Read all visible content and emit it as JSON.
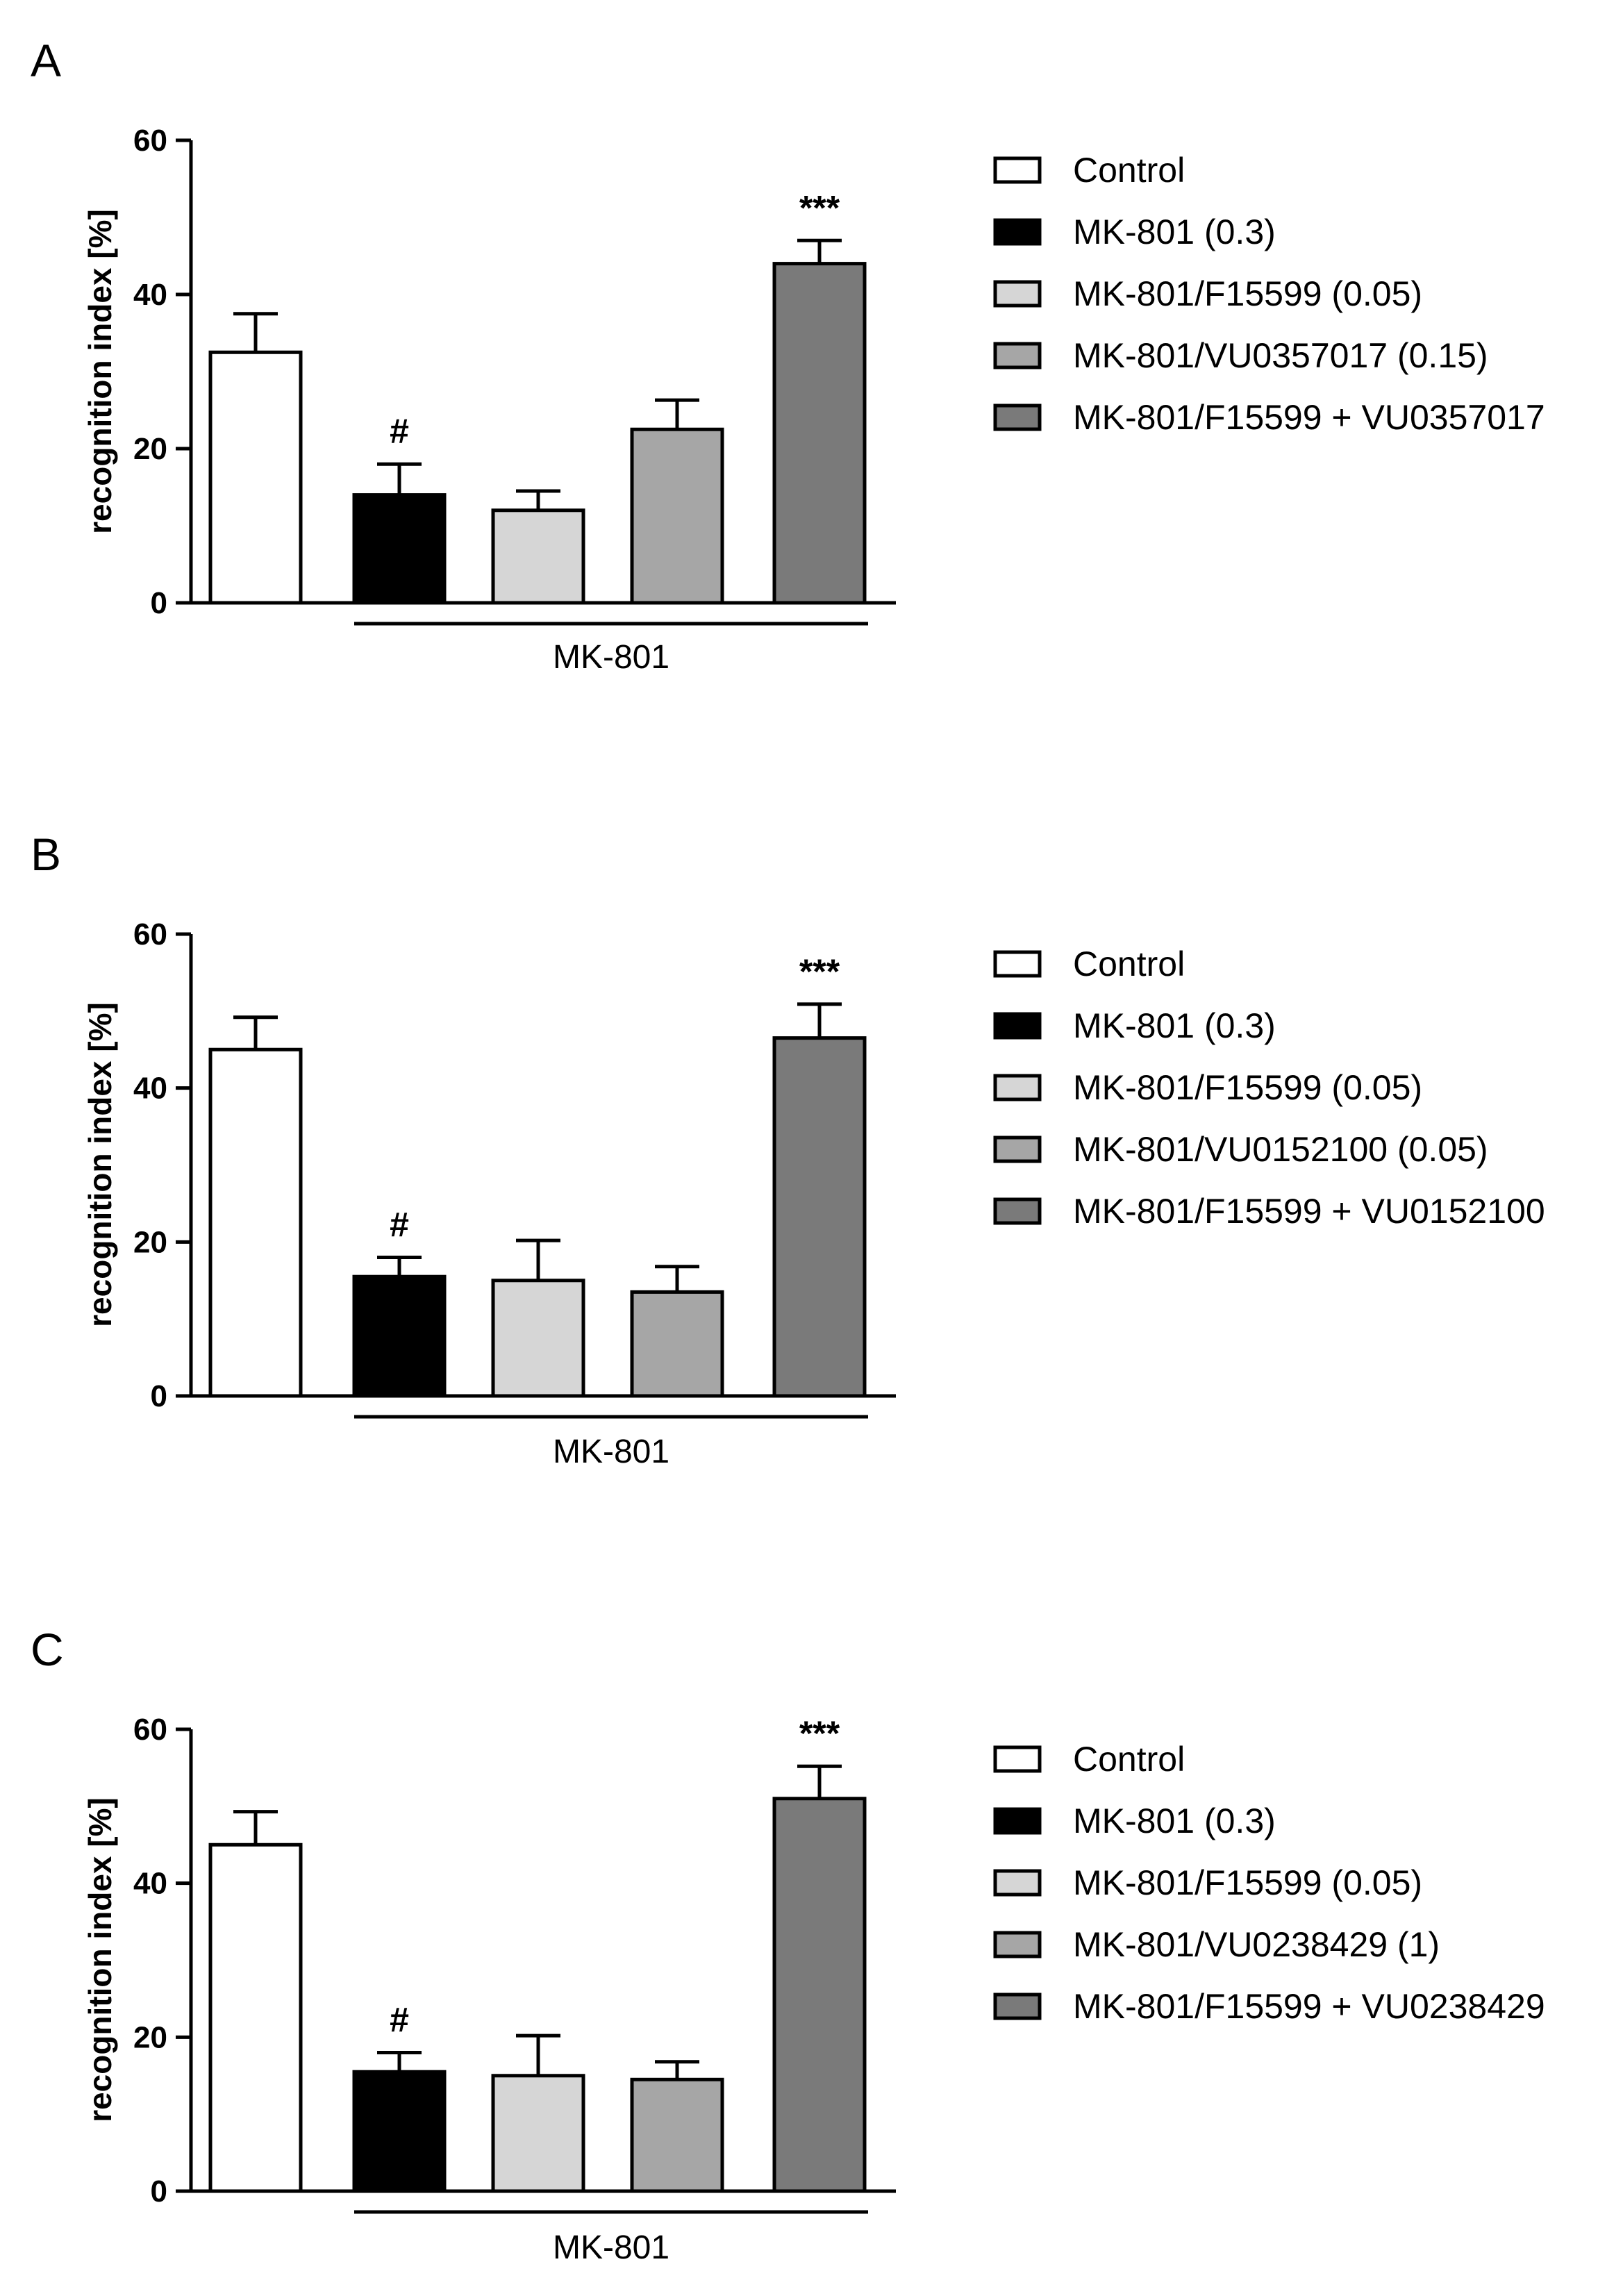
{
  "figure": {
    "panels": [
      {
        "letter": "A",
        "ylabel": "recognition index [%]",
        "bracket_label": "MK-801",
        "legend": [
          "Control",
          "MK-801 (0.3)",
          "MK-801/F15599 (0.05)",
          "MK-801/VU0357017 (0.15)",
          "MK-801/F15599 + VU0357017"
        ]
      },
      {
        "letter": "B",
        "ylabel": "recognition index [%]",
        "bracket_label": "MK-801",
        "legend": [
          "Control",
          "MK-801 (0.3)",
          "MK-801/F15599 (0.05)",
          "MK-801/VU0152100 (0.05)",
          "MK-801/F15599 + VU0152100"
        ]
      },
      {
        "letter": "C",
        "ylabel": "recognition index [%]",
        "bracket_label": "MK-801",
        "legend": [
          "Control",
          "MK-801 (0.3)",
          "MK-801/F15599 (0.05)",
          "MK-801/VU0238429 (1)",
          "MK-801/F15599 + VU0238429"
        ]
      }
    ]
  },
  "colors": {
    "fills": [
      "#ffffff",
      "#000000",
      "#d6d6d6",
      "#a6a6a6",
      "#7a7a7a"
    ],
    "stroke": "#000000"
  },
  "chart_data": [
    {
      "type": "bar",
      "title": "A",
      "xlabel": "MK-801",
      "ylabel": "recognition index [%]",
      "ylim": [
        0,
        60
      ],
      "yticks": [
        0,
        20,
        40,
        60
      ],
      "categories": [
        "Control",
        "MK-801 (0.3)",
        "MK-801/F15599 (0.05)",
        "MK-801/VU0357017 (0.15)",
        "MK-801/F15599 + VU0357017"
      ],
      "values": [
        32.5,
        14,
        12,
        22.5,
        44
      ],
      "errors": [
        5,
        4,
        2.5,
        3.8,
        3
      ],
      "annotations": [
        "",
        "#",
        "",
        "",
        "***"
      ]
    },
    {
      "type": "bar",
      "title": "B",
      "xlabel": "MK-801",
      "ylabel": "recognition index [%]",
      "ylim": [
        0,
        60
      ],
      "yticks": [
        0,
        20,
        40,
        60
      ],
      "categories": [
        "Control",
        "MK-801 (0.3)",
        "MK-801/F15599 (0.05)",
        "MK-801/VU0152100 (0.05)",
        "MK-801/F15599 + VU0152100"
      ],
      "values": [
        45,
        15.5,
        15,
        13.5,
        46.5
      ],
      "errors": [
        4.2,
        2.5,
        5.2,
        3.3,
        4.4
      ],
      "annotations": [
        "",
        "#",
        "",
        "",
        "***"
      ]
    },
    {
      "type": "bar",
      "title": "C",
      "xlabel": "MK-801",
      "ylabel": "recognition index [%]",
      "ylim": [
        0,
        60
      ],
      "yticks": [
        0,
        20,
        40,
        60
      ],
      "categories": [
        "Control",
        "MK-801 (0.3)",
        "MK-801/F15599 (0.05)",
        "MK-801/VU0238429 (1)",
        "MK-801/F15599 + VU0238429"
      ],
      "values": [
        45,
        15.5,
        15,
        14.5,
        51
      ],
      "errors": [
        4.3,
        2.5,
        5.2,
        2.3,
        4.2
      ],
      "annotations": [
        "",
        "#",
        "",
        "",
        "***"
      ]
    }
  ]
}
